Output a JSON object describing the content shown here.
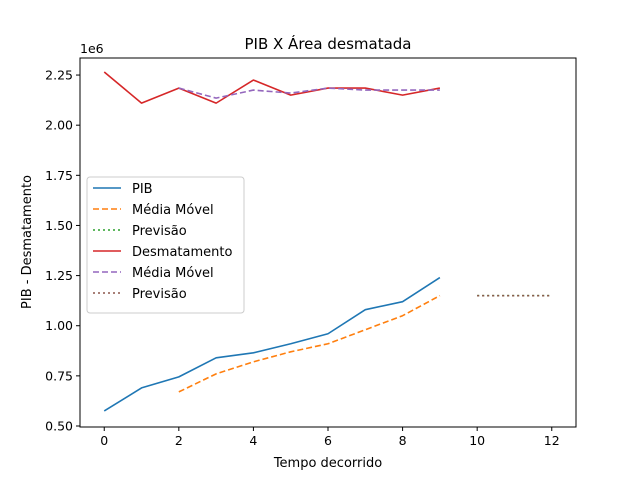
{
  "chart_data": {
    "type": "line",
    "title": "PIB X Área desmatada",
    "xlabel": "Tempo decorrido",
    "ylabel": "PIB - Desmatamento",
    "y_offset_label": "1e6",
    "xlim": [
      -0.65,
      12.65
    ],
    "ylim": [
      0.495,
      2.335
    ],
    "x_ticks": [
      0,
      2,
      4,
      6,
      8,
      10,
      12
    ],
    "x_tick_labels": [
      "0",
      "2",
      "4",
      "6",
      "8",
      "10",
      "12"
    ],
    "y_ticks": [
      0.5,
      0.75,
      1.0,
      1.25,
      1.5,
      1.75,
      2.0,
      2.25
    ],
    "y_tick_labels": [
      "0.50",
      "0.75",
      "1.00",
      "1.25",
      "1.50",
      "1.75",
      "2.00",
      "2.25"
    ],
    "legend_position": "center-left",
    "grid": false,
    "series": [
      {
        "name": "PIB",
        "style": "solid",
        "color": "#1f77b4",
        "x": [
          0,
          1,
          2,
          3,
          4,
          5,
          6,
          7,
          8,
          9
        ],
        "y": [
          0.575,
          0.69,
          0.745,
          0.84,
          0.865,
          0.91,
          0.96,
          1.08,
          1.12,
          1.24
        ]
      },
      {
        "name": "Média Móvel",
        "style": "dashed",
        "color": "#ff7f0e",
        "x": [
          2,
          3,
          4,
          5,
          6,
          7,
          8,
          9
        ],
        "y": [
          0.67,
          0.76,
          0.82,
          0.87,
          0.91,
          0.98,
          1.05,
          1.15
        ]
      },
      {
        "name": "Previsão",
        "style": "dotted",
        "color": "#2ca02c",
        "x": [
          10,
          12
        ],
        "y": [
          1.15,
          1.15
        ]
      },
      {
        "name": "Desmatamento",
        "style": "solid",
        "color": "#d62728",
        "x": [
          0,
          1,
          2,
          3,
          4,
          5,
          6,
          7,
          8,
          9
        ],
        "y": [
          2.265,
          2.11,
          2.185,
          2.11,
          2.225,
          2.15,
          2.185,
          2.185,
          2.15,
          2.185
        ]
      },
      {
        "name": "Média Móvel",
        "style": "dashed",
        "color": "#9467bd",
        "x": [
          2,
          3,
          4,
          5,
          6,
          7,
          8,
          9
        ],
        "y": [
          2.185,
          2.135,
          2.175,
          2.16,
          2.185,
          2.175,
          2.175,
          2.175
        ]
      },
      {
        "name": "Previsão",
        "style": "dotted",
        "color": "#8c564b",
        "x": [
          10,
          12
        ],
        "y": [
          1.15,
          1.15
        ]
      }
    ]
  }
}
